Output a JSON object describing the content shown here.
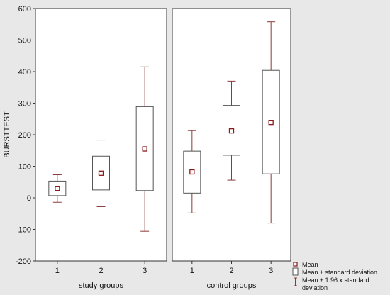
{
  "chart_data": {
    "type": "box",
    "ylabel": "BURSTTEST",
    "ylim": [
      -200,
      600
    ],
    "yticks": [
      -200,
      -100,
      0,
      100,
      200,
      300,
      400,
      500,
      600
    ],
    "grid": false,
    "legend_position": "bottom-right",
    "legend": [
      "Mean",
      "Mean ± standard deviation",
      "Mean ± 1.96 x standard deviation"
    ],
    "panels": [
      {
        "xlabel": "study groups",
        "groups": [
          {
            "label": "1",
            "mean": 30,
            "sd_low": 7,
            "sd_high": 53,
            "ci_low": -14,
            "ci_high": 73
          },
          {
            "label": "2",
            "mean": 78,
            "sd_low": 25,
            "sd_high": 132,
            "ci_low": -28,
            "ci_high": 183
          },
          {
            "label": "3",
            "mean": 155,
            "sd_low": 23,
            "sd_high": 289,
            "ci_low": -106,
            "ci_high": 415
          }
        ]
      },
      {
        "xlabel": "control groups",
        "groups": [
          {
            "label": "1",
            "mean": 82,
            "sd_low": 15,
            "sd_high": 148,
            "ci_low": -48,
            "ci_high": 213
          },
          {
            "label": "2",
            "mean": 212,
            "sd_low": 135,
            "sd_high": 293,
            "ci_low": 56,
            "ci_high": 370
          },
          {
            "label": "3",
            "mean": 239,
            "sd_low": 76,
            "sd_high": 404,
            "ci_low": -80,
            "ci_high": 558
          }
        ]
      }
    ]
  },
  "colors": {
    "background": "#e8e8e8",
    "panel": "#ffffff",
    "axis": "#333333",
    "whisker": "#8b3a3a",
    "box": "#555555",
    "mean_marker": "#8b1a1a"
  }
}
